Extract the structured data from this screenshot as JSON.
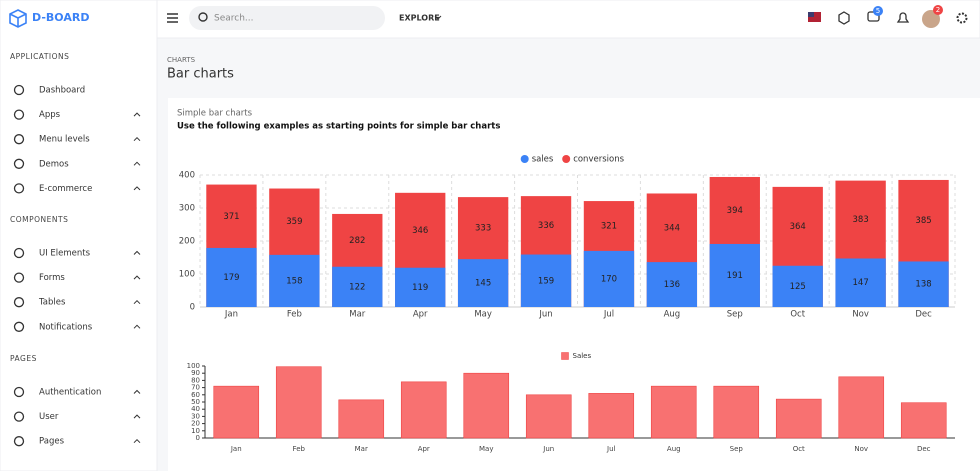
{
  "sidebar": {
    "brand": "D-BOARD",
    "sections": [
      {
        "title": "APPLICATIONS",
        "items": [
          "Dashboard",
          "Apps",
          "Menu levels",
          "Demos",
          "E-commerce"
        ]
      },
      {
        "title": "COMPONENTS",
        "items": [
          "UI Elements",
          "Forms",
          "Tables",
          "Notifications"
        ]
      },
      {
        "title": "PAGES",
        "items": [
          "Authentication",
          "User",
          "Pages"
        ]
      }
    ]
  },
  "topbar": {
    "search": "Search...",
    "explore": "EXPLORE",
    "messages_badge": 5,
    "avatar_badge": 2
  },
  "page": {
    "breadcrumb": "CHARTS",
    "title": "Bar charts",
    "card_title": "Simple bar charts",
    "card_subtitle": "Use the following examples as starting points for simple bar charts"
  },
  "chart_data": [
    {
      "type": "bar",
      "categories": [
        "Jan",
        "Feb",
        "Mar",
        "Apr",
        "May",
        "Jun",
        "Jul",
        "Aug",
        "Sep",
        "Oct",
        "Nov",
        "Dec"
      ],
      "series": [
        {
          "name": "sales",
          "color": "#3b82f6",
          "values": [
            179,
            158,
            122,
            119,
            145,
            159,
            170,
            136,
            191,
            125,
            147,
            138
          ]
        },
        {
          "name": "conversions",
          "color": "#ef4444",
          "values": [
            371,
            359,
            282,
            346,
            333,
            336,
            321,
            344,
            394,
            364,
            383,
            385
          ]
        }
      ],
      "ylim": [
        0,
        400
      ],
      "yticks": [
        0,
        100,
        200,
        300,
        400
      ],
      "grid": true,
      "legend": "top",
      "legend_shape": "circle"
    },
    {
      "type": "bar",
      "categories": [
        "Jan",
        "Feb",
        "Mar",
        "Apr",
        "May",
        "Jun",
        "Jul",
        "Aug",
        "Sep",
        "Oct",
        "Nov",
        "Dec"
      ],
      "series": [
        {
          "name": "Sales",
          "color": "#f87171",
          "values": [
            72,
            99,
            53,
            78,
            90,
            60,
            62,
            72,
            72,
            54,
            85,
            49
          ]
        }
      ],
      "ylim": [
        0,
        100
      ],
      "yticks": [
        0,
        10,
        20,
        30,
        40,
        50,
        60,
        70,
        80,
        90,
        100
      ],
      "grid": false,
      "legend": "top",
      "legend_shape": "square"
    }
  ]
}
